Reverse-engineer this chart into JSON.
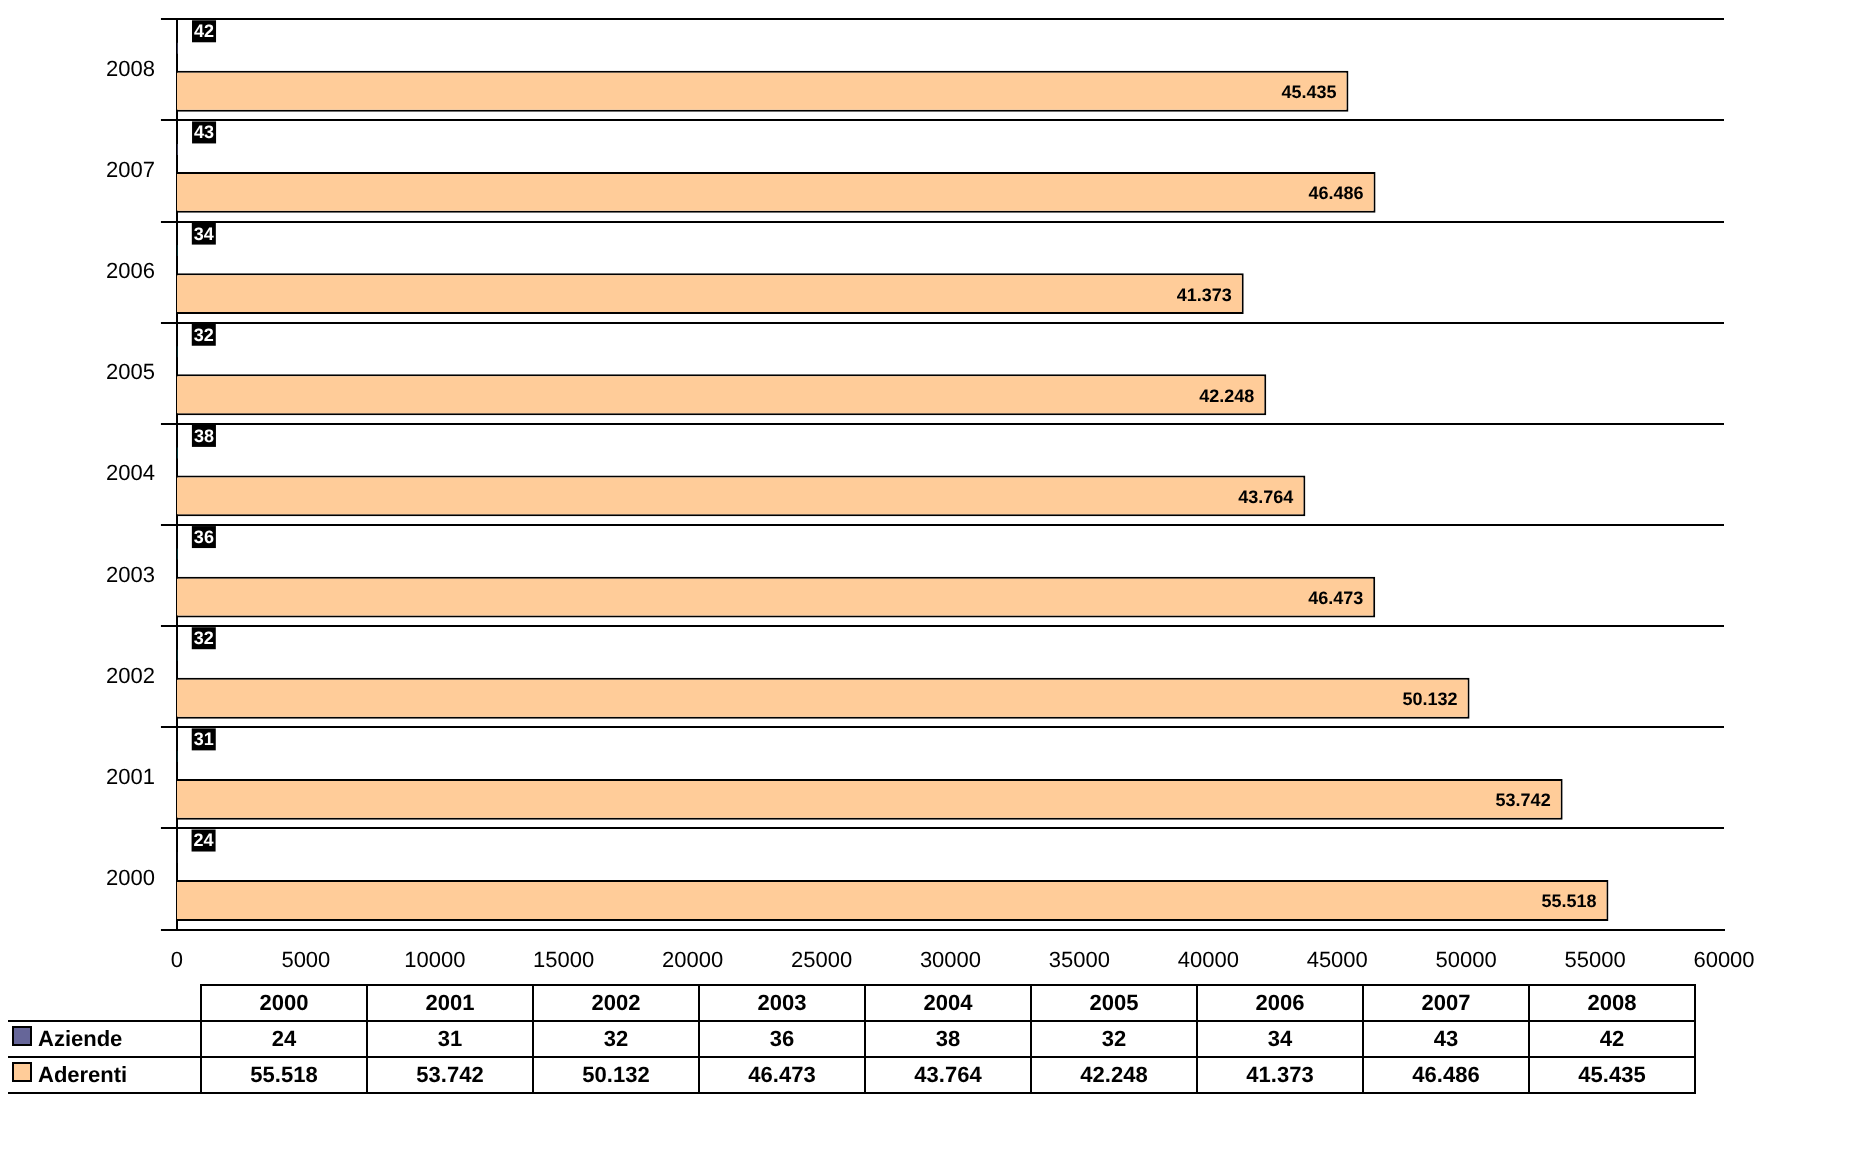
{
  "chart_data": {
    "type": "bar",
    "orientation": "horizontal",
    "categories": [
      "2008",
      "2007",
      "2006",
      "2005",
      "2004",
      "2003",
      "2002",
      "2001",
      "2000"
    ],
    "series": [
      {
        "name": "Aziende",
        "color": "#666699",
        "colors": [
          "#666699",
          "#666699",
          "#008080",
          "#008080",
          "#008080",
          "#008080",
          "#008080",
          "#008080",
          "#666699"
        ],
        "values": [
          42,
          43,
          34,
          32,
          38,
          36,
          32,
          31,
          24
        ],
        "value_labels": [
          "42",
          "43",
          "34",
          "32",
          "38",
          "36",
          "32",
          "31",
          "24"
        ]
      },
      {
        "name": "Aderenti",
        "color": "#ffcc99",
        "values": [
          45435,
          46486,
          41373,
          42248,
          43764,
          46473,
          50132,
          53742,
          55518
        ],
        "value_labels": [
          "45.435",
          "46.486",
          "41.373",
          "42.248",
          "43.764",
          "46.473",
          "50.132",
          "53.742",
          "55.518"
        ]
      }
    ],
    "xlim": [
      0,
      60000
    ],
    "xticks": [
      0,
      5000,
      10000,
      15000,
      20000,
      25000,
      30000,
      35000,
      40000,
      45000,
      50000,
      55000,
      60000
    ],
    "grid": "y",
    "legend": "bottom"
  }
}
